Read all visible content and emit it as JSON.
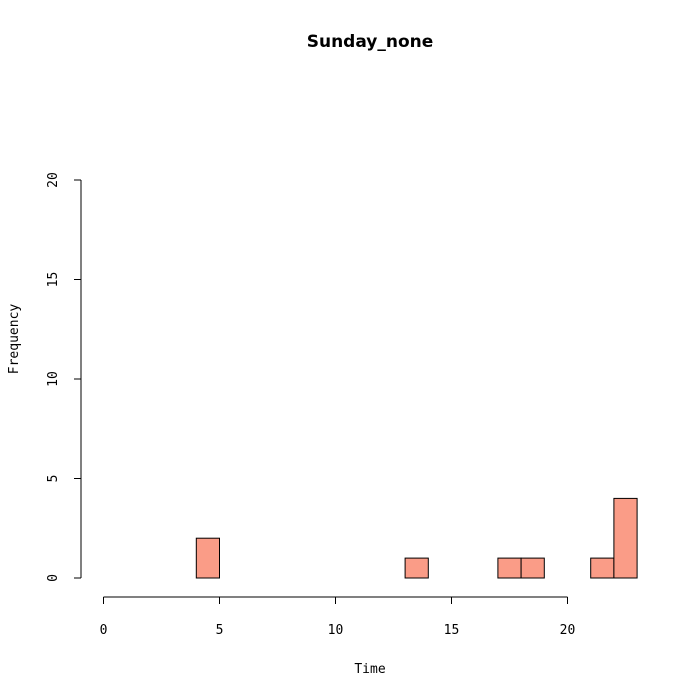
{
  "chart_data": {
    "type": "bar",
    "title": "Sunday_none",
    "xlabel": "Time",
    "ylabel": "Frequency",
    "xlim": [
      0,
      24
    ],
    "ylim": [
      0,
      20
    ],
    "bin_width": 1,
    "x_ticks": [
      0,
      5,
      10,
      15,
      20
    ],
    "y_ticks": [
      0,
      5,
      10,
      15,
      20
    ],
    "bins": [
      {
        "start": 0,
        "end": 1,
        "count": 0
      },
      {
        "start": 1,
        "end": 2,
        "count": 0
      },
      {
        "start": 2,
        "end": 3,
        "count": 0
      },
      {
        "start": 3,
        "end": 4,
        "count": 0
      },
      {
        "start": 4,
        "end": 5,
        "count": 2
      },
      {
        "start": 5,
        "end": 6,
        "count": 0
      },
      {
        "start": 6,
        "end": 7,
        "count": 0
      },
      {
        "start": 7,
        "end": 8,
        "count": 0
      },
      {
        "start": 8,
        "end": 9,
        "count": 0
      },
      {
        "start": 9,
        "end": 10,
        "count": 0
      },
      {
        "start": 10,
        "end": 11,
        "count": 0
      },
      {
        "start": 11,
        "end": 12,
        "count": 0
      },
      {
        "start": 12,
        "end": 13,
        "count": 0
      },
      {
        "start": 13,
        "end": 14,
        "count": 1
      },
      {
        "start": 14,
        "end": 15,
        "count": 0
      },
      {
        "start": 15,
        "end": 16,
        "count": 0
      },
      {
        "start": 16,
        "end": 17,
        "count": 0
      },
      {
        "start": 17,
        "end": 18,
        "count": 1
      },
      {
        "start": 18,
        "end": 19,
        "count": 1
      },
      {
        "start": 19,
        "end": 20,
        "count": 0
      },
      {
        "start": 20,
        "end": 21,
        "count": 0
      },
      {
        "start": 21,
        "end": 22,
        "count": 1
      },
      {
        "start": 22,
        "end": 23,
        "count": 4
      }
    ],
    "bar_color": "#FA9C87",
    "bar_border_color": "#000000",
    "grid": false
  }
}
